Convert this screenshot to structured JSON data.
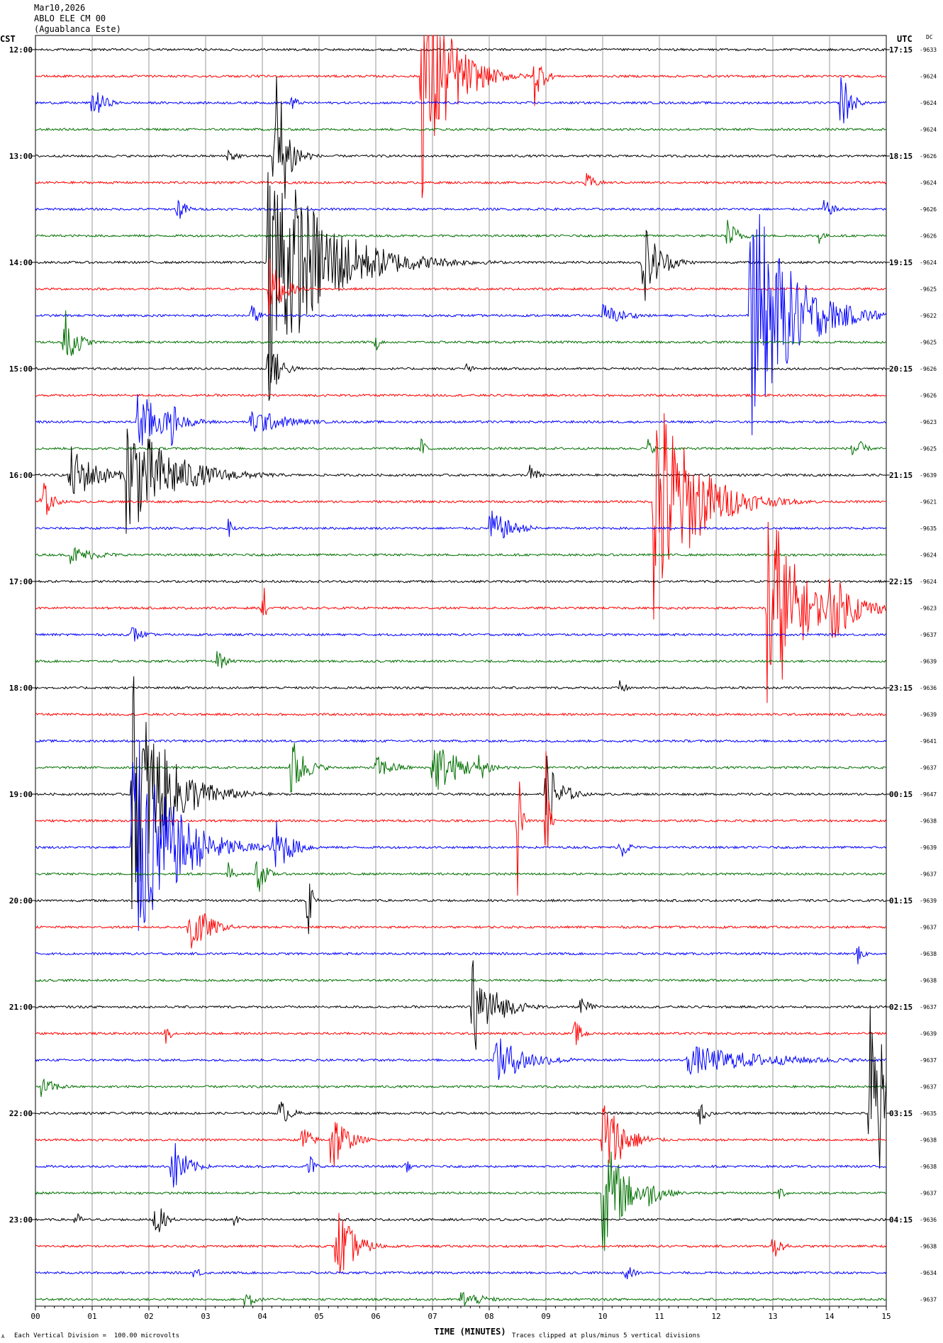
{
  "header": {
    "date": "Mar10,2026",
    "station": "ABLO ELE CM 00",
    "site": "(Aguablanca Este)"
  },
  "left_timezone": "CST",
  "right_timezone": "UTC",
  "dc_label": "DC",
  "footer": {
    "corner_mark": "A",
    "scale_note": "Each Vertical Division =  100.00 microvolts",
    "clip_note": "Traces clipped at plus/minus 5 vertical divisions"
  },
  "chart_data": {
    "type": "line",
    "title": "Mar10,2026 ABLO ELE CM 00 (Aguablanca Este)",
    "xlabel": "TIME (MINUTES)",
    "x_ticks": [
      "00",
      "01",
      "02",
      "03",
      "04",
      "05",
      "06",
      "07",
      "08",
      "09",
      "10",
      "11",
      "12",
      "13",
      "14",
      "15"
    ],
    "xlim": [
      0,
      15
    ],
    "grid": true,
    "trace_colors": [
      "#000000",
      "#ff0000",
      "#0000ff",
      "#007000"
    ],
    "rows_per_hour": 4,
    "cst_hour_labels": [
      "12:00",
      "13:00",
      "14:00",
      "15:00",
      "16:00",
      "17:00",
      "18:00",
      "19:00",
      "20:00",
      "21:00",
      "22:00",
      "23:00"
    ],
    "utc_hour_labels": [
      "17:15",
      "18:15",
      "19:15",
      "20:15",
      "21:15",
      "22:15",
      "23:15",
      "00:15",
      "01:15",
      "02:15",
      "03:15",
      "04:15"
    ],
    "dc_offsets": [
      "-9633",
      "-9624",
      "-9624",
      "-9624",
      "-9626",
      "-9624",
      "-9626",
      "-9626",
      "-9624",
      "-9625",
      "-9622",
      "-9625",
      "-9626",
      "-9626",
      "-9623",
      "-9625",
      "-9639",
      "-9621",
      "-9635",
      "-9624",
      "-9624",
      "-9623",
      "-9637",
      "-9639",
      "-9636",
      "-9639",
      "-9641",
      "-9637",
      "-9647",
      "-9638",
      "-9639",
      "-9637",
      "-9639",
      "-9637",
      "-9638",
      "-9638",
      "-9637",
      "-9639",
      "-9637",
      "-9637",
      "-9635",
      "-9638",
      "-9638",
      "-9637",
      "-9636",
      "-9638",
      "-9634",
      "-9637"
    ],
    "events": [
      {
        "row": 1,
        "minute": 6.8,
        "amp": 5,
        "dur": 1.0
      },
      {
        "row": 1,
        "minute": 8.8,
        "amp": 1.2,
        "dur": 0.3
      },
      {
        "row": 2,
        "minute": 1.0,
        "amp": 0.8,
        "dur": 0.4
      },
      {
        "row": 2,
        "minute": 4.5,
        "amp": 0.5,
        "dur": 0.2
      },
      {
        "row": 2,
        "minute": 14.2,
        "amp": 1.6,
        "dur": 0.3
      },
      {
        "row": 4,
        "minute": 3.4,
        "amp": 0.4,
        "dur": 0.3
      },
      {
        "row": 4,
        "minute": 4.2,
        "amp": 5,
        "dur": 0.4
      },
      {
        "row": 5,
        "minute": 9.7,
        "amp": 0.4,
        "dur": 0.4
      },
      {
        "row": 6,
        "minute": 2.5,
        "amp": 0.6,
        "dur": 0.3
      },
      {
        "row": 6,
        "minute": 13.9,
        "amp": 0.4,
        "dur": 0.4
      },
      {
        "row": 7,
        "minute": 12.2,
        "amp": 0.7,
        "dur": 0.4
      },
      {
        "row": 7,
        "minute": 13.8,
        "amp": 0.4,
        "dur": 0.2
      },
      {
        "row": 8,
        "minute": 4.1,
        "amp": 5,
        "dur": 2.0
      },
      {
        "row": 8,
        "minute": 10.7,
        "amp": 1.8,
        "dur": 0.6
      },
      {
        "row": 9,
        "minute": 4.1,
        "amp": 1.4,
        "dur": 0.5
      },
      {
        "row": 10,
        "minute": 3.8,
        "amp": 0.5,
        "dur": 0.3
      },
      {
        "row": 10,
        "minute": 10.0,
        "amp": 0.5,
        "dur": 0.8
      },
      {
        "row": 10,
        "minute": 12.6,
        "amp": 5,
        "dur": 1.5
      },
      {
        "row": 11,
        "minute": 0.5,
        "amp": 1.5,
        "dur": 0.4
      },
      {
        "row": 11,
        "minute": 6.0,
        "amp": 0.5,
        "dur": 0.1
      },
      {
        "row": 12,
        "minute": 4.1,
        "amp": 1.5,
        "dur": 0.4
      },
      {
        "row": 12,
        "minute": 7.6,
        "amp": 0.3,
        "dur": 0.2
      },
      {
        "row": 14,
        "minute": 1.8,
        "amp": 1.3,
        "dur": 1.0
      },
      {
        "row": 14,
        "minute": 2.4,
        "amp": 1.0,
        "dur": 0.3
      },
      {
        "row": 14,
        "minute": 3.8,
        "amp": 0.6,
        "dur": 1.2
      },
      {
        "row": 15,
        "minute": 6.8,
        "amp": 0.4,
        "dur": 0.3
      },
      {
        "row": 15,
        "minute": 10.8,
        "amp": 0.4,
        "dur": 0.2
      },
      {
        "row": 15,
        "minute": 14.4,
        "amp": 0.8,
        "dur": 0.3
      },
      {
        "row": 16,
        "minute": 0.6,
        "amp": 1.2,
        "dur": 1.0
      },
      {
        "row": 16,
        "minute": 1.6,
        "amp": 2.5,
        "dur": 1.6
      },
      {
        "row": 16,
        "minute": 8.7,
        "amp": 0.5,
        "dur": 0.3
      },
      {
        "row": 17,
        "minute": 0.1,
        "amp": 1.2,
        "dur": 0.3
      },
      {
        "row": 17,
        "minute": 10.9,
        "amp": 5,
        "dur": 1.4
      },
      {
        "row": 18,
        "minute": 3.4,
        "amp": 0.4,
        "dur": 0.2
      },
      {
        "row": 18,
        "minute": 8.0,
        "amp": 0.8,
        "dur": 0.8
      },
      {
        "row": 19,
        "minute": 0.6,
        "amp": 0.4,
        "dur": 1.0
      },
      {
        "row": 21,
        "minute": 4.0,
        "amp": 1.5,
        "dur": 0.1
      },
      {
        "row": 21,
        "minute": 12.9,
        "amp": 5,
        "dur": 1.0
      },
      {
        "row": 21,
        "minute": 14.0,
        "amp": 1.5,
        "dur": 1.0
      },
      {
        "row": 22,
        "minute": 1.7,
        "amp": 0.4,
        "dur": 0.4
      },
      {
        "row": 23,
        "minute": 3.2,
        "amp": 0.5,
        "dur": 0.3
      },
      {
        "row": 24,
        "minute": 10.3,
        "amp": 0.3,
        "dur": 0.3
      },
      {
        "row": 27,
        "minute": 4.5,
        "amp": 1.4,
        "dur": 0.5
      },
      {
        "row": 27,
        "minute": 6.0,
        "amp": 0.5,
        "dur": 0.7
      },
      {
        "row": 27,
        "minute": 7.0,
        "amp": 1.2,
        "dur": 1.0
      },
      {
        "row": 27,
        "minute": 7.8,
        "amp": 0.6,
        "dur": 0.5
      },
      {
        "row": 28,
        "minute": 1.7,
        "amp": 5,
        "dur": 1.2
      },
      {
        "row": 28,
        "minute": 9.0,
        "amp": 1.6,
        "dur": 0.5
      },
      {
        "row": 29,
        "minute": 8.5,
        "amp": 3.0,
        "dur": 0.05
      },
      {
        "row": 29,
        "minute": 9.0,
        "amp": 3.0,
        "dur": 0.05
      },
      {
        "row": 30,
        "minute": 1.7,
        "amp": 5,
        "dur": 1.4
      },
      {
        "row": 30,
        "minute": 4.2,
        "amp": 1.3,
        "dur": 0.6
      },
      {
        "row": 30,
        "minute": 10.3,
        "amp": 0.6,
        "dur": 0.3
      },
      {
        "row": 31,
        "minute": 3.9,
        "amp": 1.0,
        "dur": 0.3
      },
      {
        "row": 31,
        "minute": 3.4,
        "amp": 0.5,
        "dur": 0.2
      },
      {
        "row": 32,
        "minute": 4.8,
        "amp": 3.0,
        "dur": 0.05
      },
      {
        "row": 33,
        "minute": 2.7,
        "amp": 1.5,
        "dur": 0.6
      },
      {
        "row": 34,
        "minute": 14.5,
        "amp": 0.5,
        "dur": 0.2
      },
      {
        "row": 36,
        "minute": 7.7,
        "amp": 2.0,
        "dur": 0.8
      },
      {
        "row": 36,
        "minute": 9.6,
        "amp": 0.4,
        "dur": 0.4
      },
      {
        "row": 37,
        "minute": 2.3,
        "amp": 0.4,
        "dur": 0.2
      },
      {
        "row": 37,
        "minute": 9.5,
        "amp": 0.6,
        "dur": 0.3
      },
      {
        "row": 38,
        "minute": 8.1,
        "amp": 1.0,
        "dur": 1.2
      },
      {
        "row": 38,
        "minute": 11.5,
        "amp": 0.6,
        "dur": 3.0
      },
      {
        "row": 39,
        "minute": 0.1,
        "amp": 0.4,
        "dur": 0.6
      },
      {
        "row": 40,
        "minute": 4.3,
        "amp": 0.6,
        "dur": 0.4
      },
      {
        "row": 40,
        "minute": 11.7,
        "amp": 0.5,
        "dur": 0.3
      },
      {
        "row": 40,
        "minute": 14.7,
        "amp": 5,
        "dur": 0.8
      },
      {
        "row": 41,
        "minute": 5.2,
        "amp": 1.6,
        "dur": 0.5
      },
      {
        "row": 41,
        "minute": 10.0,
        "amp": 2.0,
        "dur": 0.7
      },
      {
        "row": 41,
        "minute": 4.7,
        "amp": 0.8,
        "dur": 0.3
      },
      {
        "row": 42,
        "minute": 2.4,
        "amp": 1.3,
        "dur": 0.5
      },
      {
        "row": 42,
        "minute": 4.8,
        "amp": 0.8,
        "dur": 0.2
      },
      {
        "row": 42,
        "minute": 6.5,
        "amp": 0.4,
        "dur": 0.2
      },
      {
        "row": 43,
        "minute": 10.0,
        "amp": 2.5,
        "dur": 0.8
      },
      {
        "row": 43,
        "minute": 10.8,
        "amp": 0.6,
        "dur": 0.6
      },
      {
        "row": 43,
        "minute": 13.1,
        "amp": 0.4,
        "dur": 0.2
      },
      {
        "row": 44,
        "minute": 2.1,
        "amp": 1.0,
        "dur": 0.3
      },
      {
        "row": 44,
        "minute": 0.7,
        "amp": 0.4,
        "dur": 0.2
      },
      {
        "row": 44,
        "minute": 3.5,
        "amp": 0.3,
        "dur": 0.2
      },
      {
        "row": 45,
        "minute": 5.3,
        "amp": 1.8,
        "dur": 0.6
      },
      {
        "row": 45,
        "minute": 13.0,
        "amp": 0.6,
        "dur": 0.3
      },
      {
        "row": 46,
        "minute": 2.8,
        "amp": 0.4,
        "dur": 0.2
      },
      {
        "row": 46,
        "minute": 10.4,
        "amp": 0.4,
        "dur": 0.3
      },
      {
        "row": 47,
        "minute": 3.7,
        "amp": 0.6,
        "dur": 0.3
      },
      {
        "row": 47,
        "minute": 7.5,
        "amp": 0.4,
        "dur": 0.8
      }
    ]
  }
}
